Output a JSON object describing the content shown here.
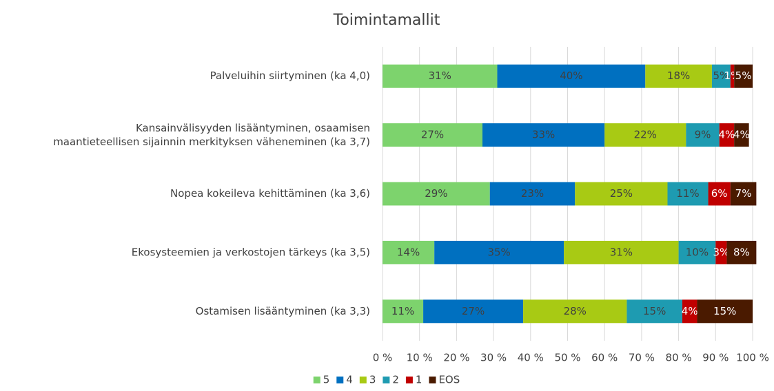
{
  "chart_data": {
    "type": "stacked_barh",
    "title": "Toimintamallit",
    "categories": [
      "Palveluihin siirtyminen (ka 4,0)",
      "Kansainvälisyyden lisääntyminen, osaamisen\nmaantieteellisen sijainnin merkityksen väheneminen (ka 3,7)",
      "Nopea kokeileva kehittäminen (ka 3,6)",
      "Ekosysteemien ja verkostojen tärkeys (ka 3,5)",
      "Ostamisen lisääntyminen (ka 3,3)"
    ],
    "series": [
      {
        "name": "5",
        "color": "#7dd36d",
        "label_color": "#404040",
        "values": [
          31,
          27,
          29,
          14,
          11
        ],
        "value_labels": [
          "31%",
          "27%",
          "29%",
          "14%",
          "11%"
        ]
      },
      {
        "name": "4",
        "color": "#0070c0",
        "label_color": "#404040",
        "values": [
          40,
          33,
          23,
          35,
          27
        ],
        "value_labels": [
          "40%",
          "33%",
          "23%",
          "35%",
          "27%"
        ]
      },
      {
        "name": "3",
        "color": "#a8ca14",
        "label_color": "#404040",
        "values": [
          18,
          22,
          25,
          31,
          28
        ],
        "value_labels": [
          "18%",
          "22%",
          "25%",
          "31%",
          "28%"
        ]
      },
      {
        "name": "2",
        "color": "#1e9bb1",
        "label_color": "#404040",
        "values": [
          5,
          9,
          11,
          10,
          15
        ],
        "value_labels": [
          "5%",
          "9%",
          "11%",
          "10%",
          "15%"
        ]
      },
      {
        "name": "1",
        "color": "#c00000",
        "label_color": "#ffffff",
        "values": [
          1,
          4,
          6,
          3,
          4
        ],
        "value_labels": [
          "1%",
          "4%",
          "6%",
          "3%",
          "4%"
        ]
      },
      {
        "name": "EOS",
        "color": "#4a1a00",
        "label_color": "#ffffff",
        "values": [
          5,
          4,
          7,
          8,
          15
        ],
        "value_labels": [
          "5%",
          "4%",
          "7%",
          "8%",
          "15%"
        ]
      }
    ],
    "xlim": [
      0,
      100
    ],
    "xticks": [
      {
        "value": 0,
        "label": "0 %"
      },
      {
        "value": 10,
        "label": "10 %"
      },
      {
        "value": 20,
        "label": "20 %"
      },
      {
        "value": 30,
        "label": "30 %"
      },
      {
        "value": 40,
        "label": "40 %"
      },
      {
        "value": 50,
        "label": "50 %"
      },
      {
        "value": 60,
        "label": "60 %"
      },
      {
        "value": 70,
        "label": "70 %"
      },
      {
        "value": 80,
        "label": "80 %"
      },
      {
        "value": 90,
        "label": "90 %"
      },
      {
        "value": 100,
        "label": "100 %"
      }
    ],
    "grid": true,
    "legend": "bottom"
  }
}
